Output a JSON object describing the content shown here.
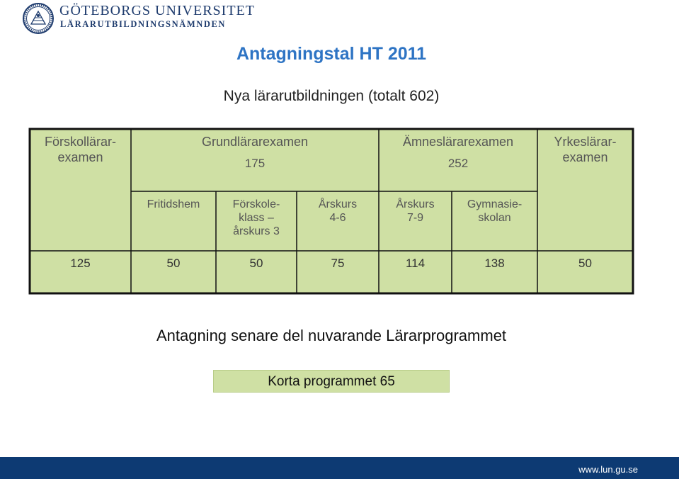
{
  "header": {
    "university_name": "GÖTEBORGS UNIVERSITET",
    "department_name": "LÄRARUTBILDNINGSNÄMNDEN"
  },
  "title": "Antagningstal HT 2011",
  "subtitle": "Nya lärarutbildningen (totalt 602)",
  "table": {
    "exams": [
      {
        "label": "Förskollärar-\nexamen",
        "total": ""
      },
      {
        "label": "Grundlärarexamen",
        "total": "175"
      },
      {
        "label": "Ämneslärarexamen",
        "total": "252"
      },
      {
        "label": "Yrkeslärar-\nexamen",
        "total": ""
      }
    ],
    "sub_headers": [
      "Fritidshem",
      "Förskole-\nklass –\nårskurs 3",
      "Årskurs\n4-6",
      "Årskurs\n7-9",
      "Gymnasie-\nskolan"
    ],
    "counts": [
      "125",
      "50",
      "50",
      "75",
      "114",
      "138",
      "50"
    ]
  },
  "bottom": {
    "title": "Antagning senare del nuvarande Lärarprogrammet",
    "box_label": "Korta programmet 65"
  },
  "footer": {
    "url": "www.lun.gu.se"
  },
  "colors": {
    "table_fill": "#cfe0a4",
    "title_blue": "#2e74c4",
    "footer_navy": "#0d3a73"
  }
}
